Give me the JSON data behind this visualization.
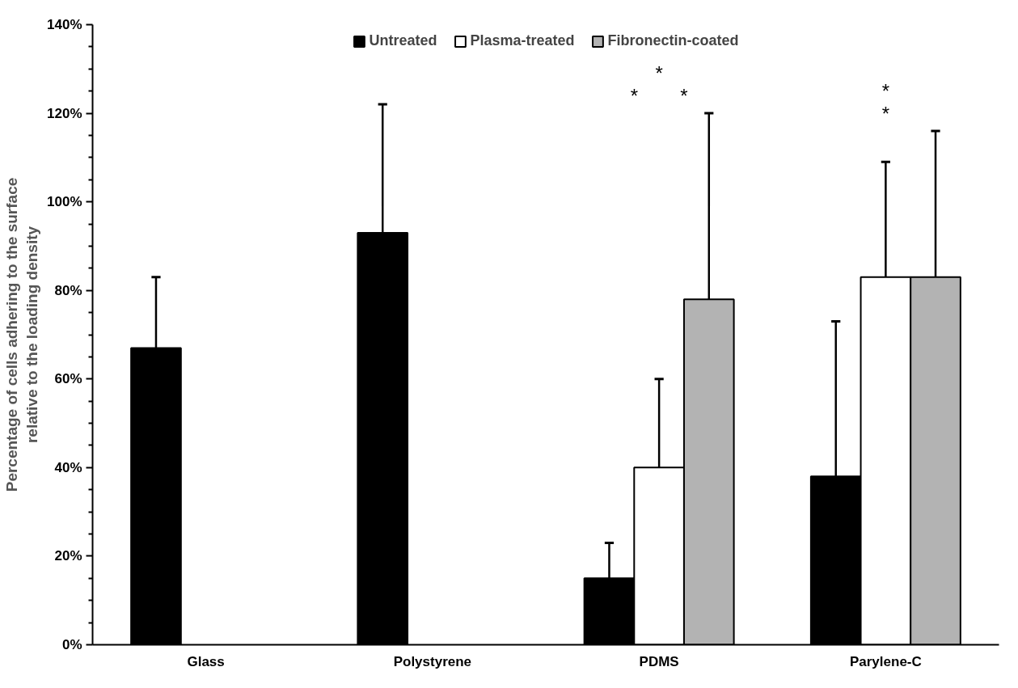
{
  "chart_data": {
    "type": "bar",
    "ylabel": "Percentage of cells adhering to the surface\nrelative to the loading density",
    "categories": [
      "Glass",
      "Polystyrene",
      "PDMS",
      "Parylene-C"
    ],
    "series": [
      {
        "name": "Untreated",
        "color": "#000000",
        "values": [
          67,
          93,
          15,
          38
        ],
        "errors": [
          [
            67,
            83
          ],
          [
            93,
            122
          ],
          [
            15,
            23
          ],
          [
            38,
            73
          ]
        ]
      },
      {
        "name": "Plasma-treated",
        "color": "#ffffff",
        "values": [
          null,
          null,
          40,
          83
        ],
        "errors": [
          null,
          null,
          [
            40,
            60
          ],
          [
            83,
            109
          ]
        ]
      },
      {
        "name": "Fibronectin-coated",
        "color": "#b3b3b3",
        "values": [
          null,
          null,
          78,
          83
        ],
        "errors": [
          null,
          null,
          [
            78,
            120
          ],
          [
            83,
            116
          ]
        ]
      }
    ],
    "ylim": [
      0,
      140
    ],
    "yticks": [
      {
        "value": 0,
        "label": "0%"
      },
      {
        "value": 20,
        "label": "20%"
      },
      {
        "value": 40,
        "label": "40%"
      },
      {
        "value": 60,
        "label": "60%"
      },
      {
        "value": 80,
        "label": "80%"
      },
      {
        "value": 100,
        "label": "100%"
      },
      {
        "value": 120,
        "label": "120%"
      },
      {
        "value": 140,
        "label": "140%"
      }
    ],
    "annotations": [
      "*",
      "*",
      "*",
      "*",
      "*"
    ],
    "legend": "top",
    "grid": false
  }
}
